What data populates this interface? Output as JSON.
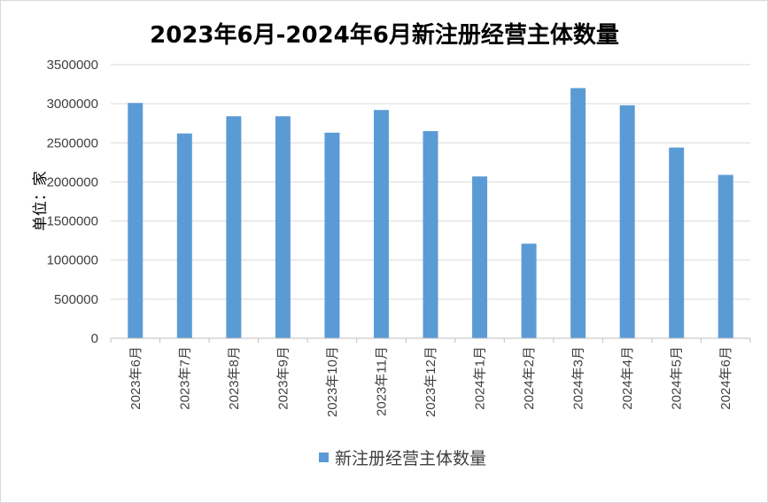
{
  "chart_data": {
    "type": "bar",
    "title": "2023年6月-2024年6月新注册经营主体数量",
    "ylabel": "单位：家",
    "xlabel": "",
    "categories": [
      "2023年6月",
      "2023年7月",
      "2023年8月",
      "2023年9月",
      "2023年10月",
      "2023年11月",
      "2023年12月",
      "2024年1月",
      "2024年2月",
      "2024年3月",
      "2024年4月",
      "2024年5月",
      "2024年6月"
    ],
    "series": [
      {
        "name": "新注册经营主体数量",
        "color": "#5b9bd5",
        "values": [
          3010000,
          2620000,
          2840000,
          2840000,
          2630000,
          2920000,
          2650000,
          2070000,
          1210000,
          3200000,
          2980000,
          2440000,
          2090000
        ]
      }
    ],
    "ylim": [
      0,
      3500000
    ],
    "yticks": [
      "0",
      "500000",
      "1000000",
      "1500000",
      "2000000",
      "2500000",
      "3000000",
      "3500000"
    ],
    "grid": true,
    "legend_position": "bottom"
  }
}
